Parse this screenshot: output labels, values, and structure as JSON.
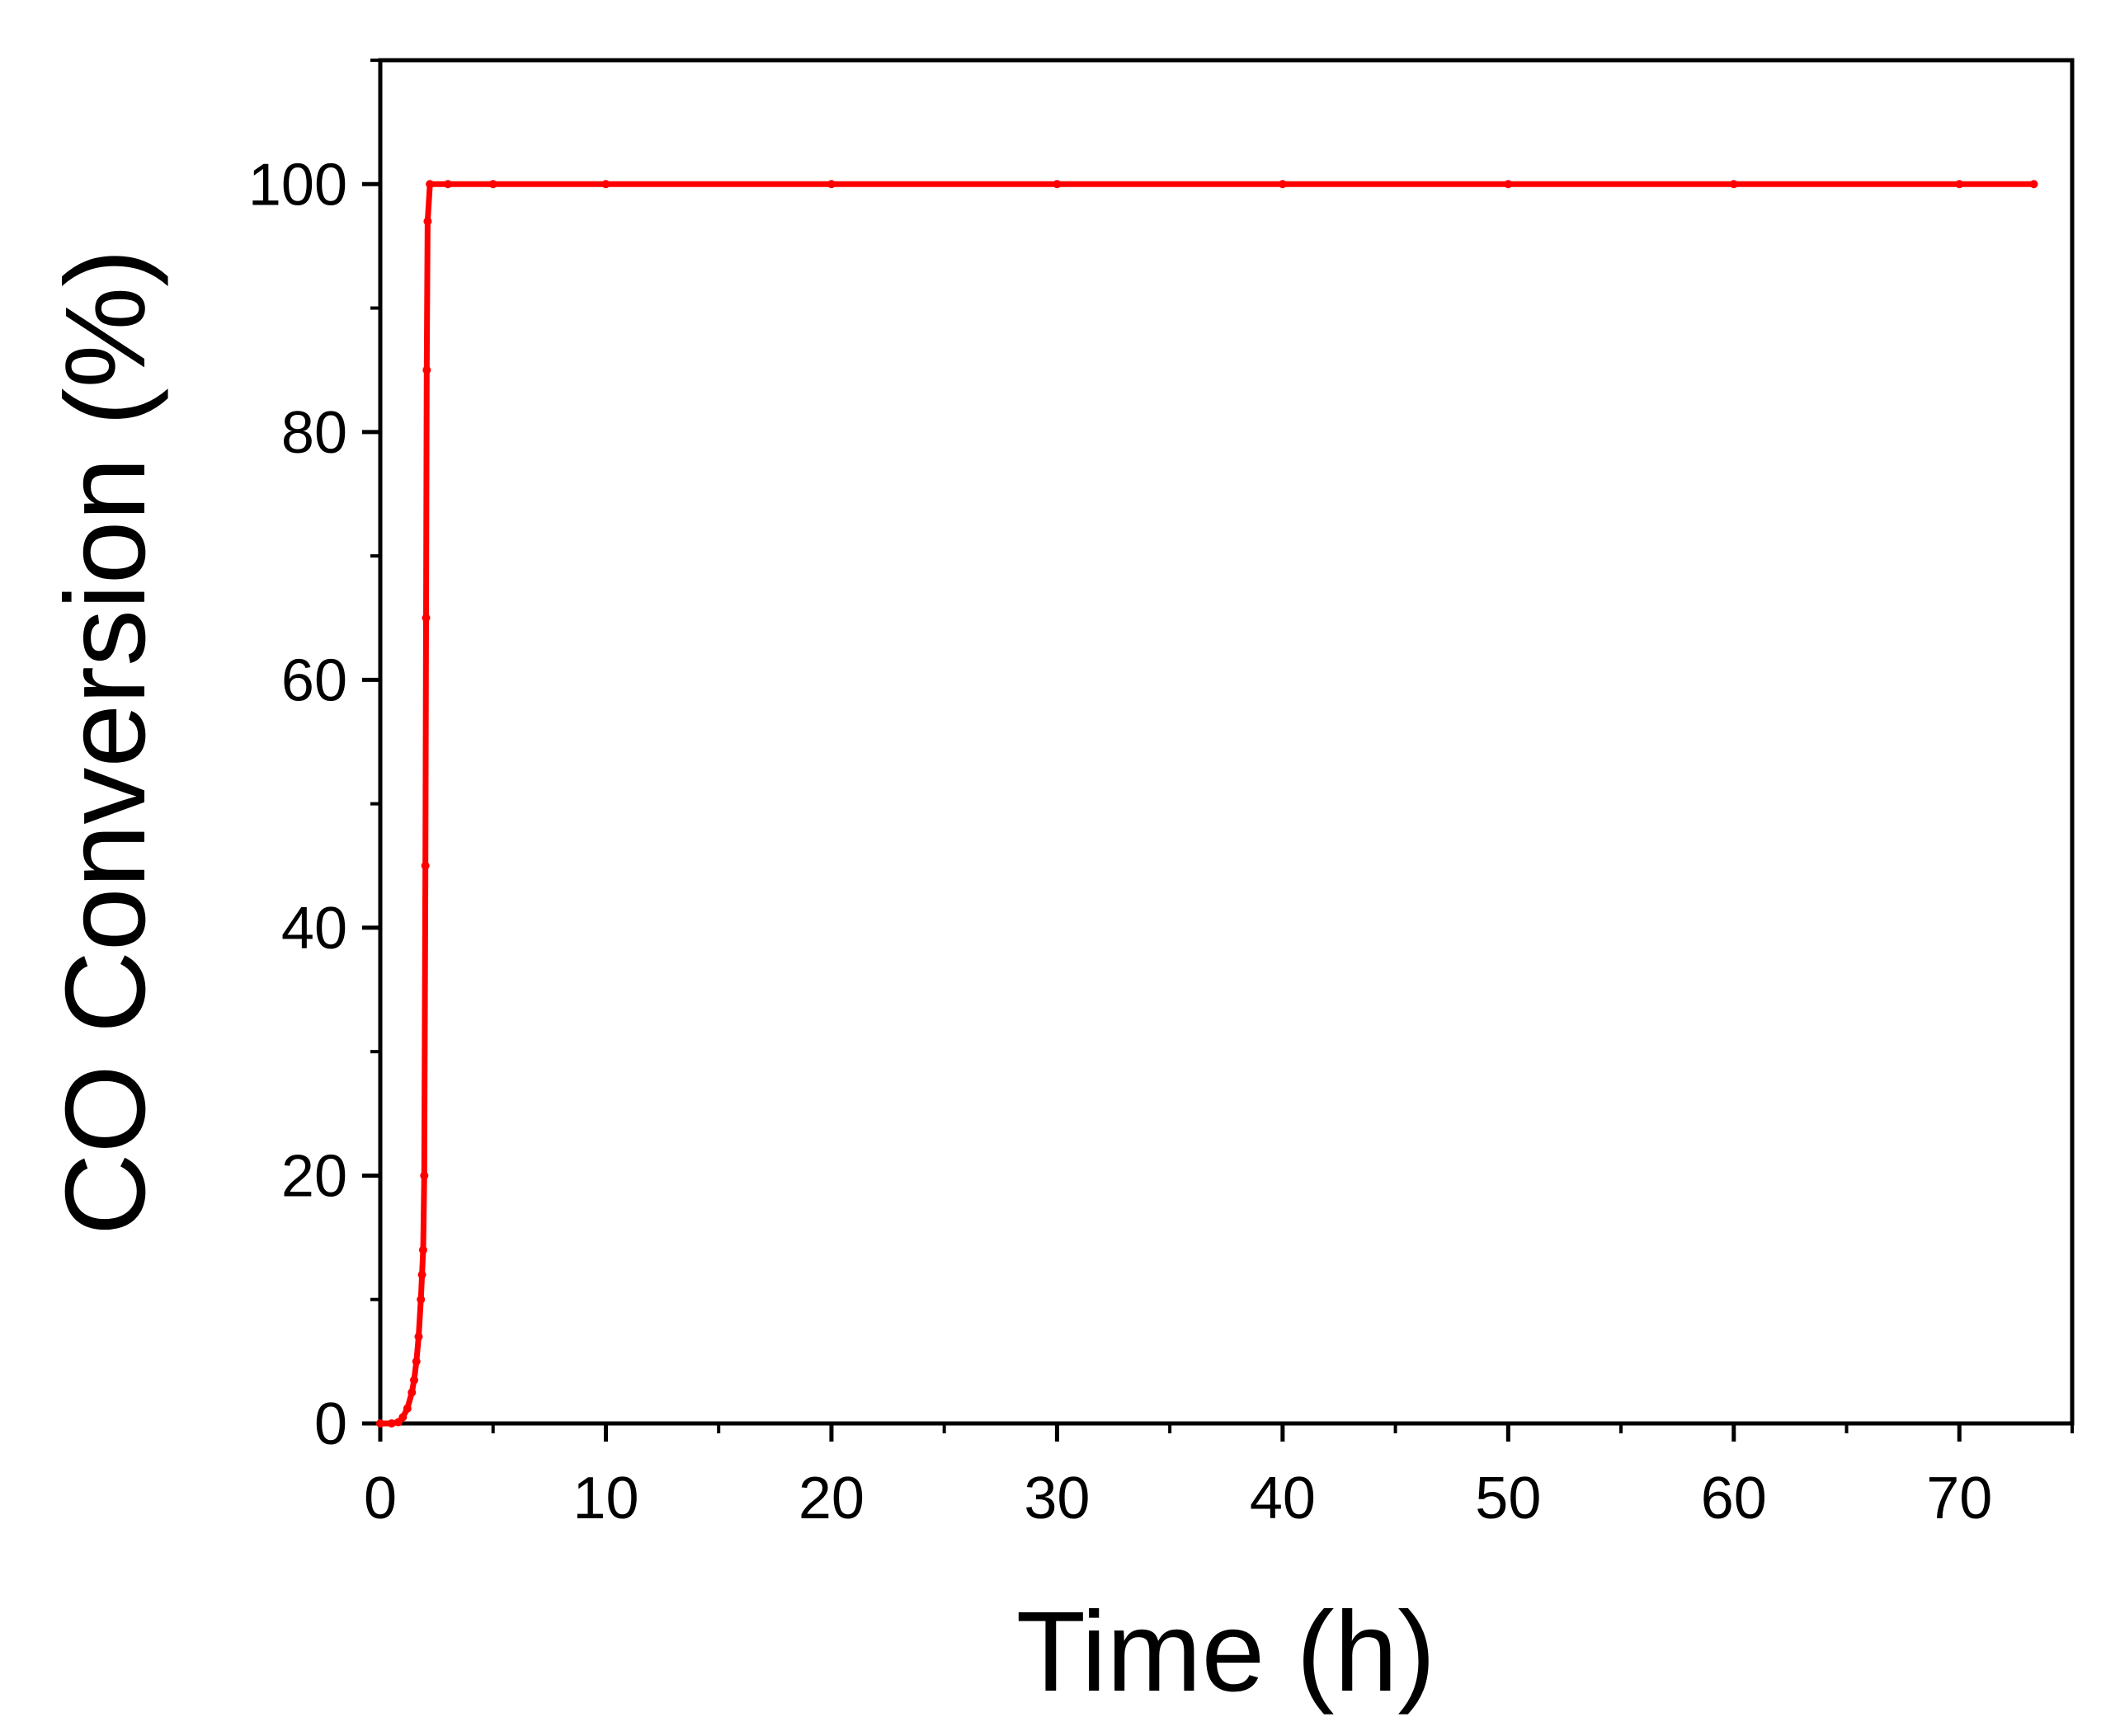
{
  "chart_data": {
    "type": "line",
    "title": "",
    "xlabel": "Time (h)",
    "ylabel": "CO Conversion (%)",
    "xlim": [
      0,
      75
    ],
    "ylim": [
      0,
      110
    ],
    "x_ticks": [
      0,
      10,
      20,
      30,
      40,
      50,
      60,
      70
    ],
    "y_ticks": [
      0,
      20,
      40,
      60,
      80,
      100
    ],
    "x_tick_labels": [
      "0",
      "10",
      "20",
      "30",
      "40",
      "50",
      "60",
      "70"
    ],
    "y_tick_labels": [
      "0",
      "20",
      "40",
      "60",
      "80",
      "100"
    ],
    "x_minor_ticks": [
      5,
      15,
      25,
      35,
      45,
      55,
      65,
      75
    ],
    "y_minor_ticks": [
      10,
      30,
      50,
      70,
      90,
      110
    ],
    "grid": false,
    "legend": "none",
    "colors": {
      "series": "#ff0000",
      "axis": "#000000"
    },
    "series": [
      {
        "x": [
          0.0,
          0.5,
          0.8,
          1.0,
          1.2,
          1.4,
          1.5,
          1.6,
          1.7,
          1.8,
          1.85,
          1.9,
          1.95,
          2.0,
          2.03,
          2.06,
          2.1,
          2.2,
          3,
          5,
          10,
          20,
          30,
          40,
          50,
          60,
          70,
          73.3
        ],
        "y": [
          0.0,
          0.0,
          0.1,
          0.5,
          1.2,
          2.5,
          3.5,
          5.0,
          7.0,
          10.0,
          12.0,
          14.0,
          20.0,
          45.0,
          65.0,
          85.0,
          97.0,
          100.0,
          100.0,
          100.0,
          100.0,
          100.0,
          100.0,
          100.0,
          100.0,
          100.0,
          100.0,
          100.0
        ]
      }
    ]
  }
}
